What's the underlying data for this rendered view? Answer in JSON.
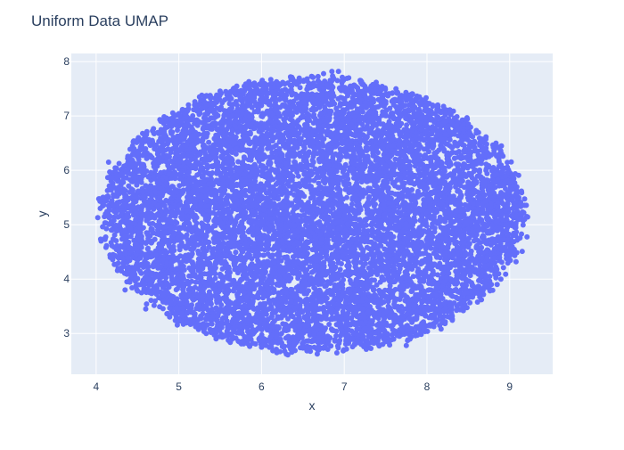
{
  "chart_data": {
    "type": "scatter",
    "title": "Uniform Data UMAP",
    "xlabel": "x",
    "ylabel": "y",
    "xlim": [
      3.7,
      9.52
    ],
    "ylim": [
      2.25,
      8.15
    ],
    "xticks": [
      4,
      5,
      6,
      7,
      8,
      9
    ],
    "yticks": [
      3,
      4,
      5,
      6,
      7,
      8
    ],
    "grid": true,
    "legend": "none",
    "marker_color": "#636efa",
    "plot_bg": "#e5ecf6",
    "cloud": {
      "shape": "ellipse",
      "center": [
        6.62,
        5.17
      ],
      "x_semi_axis": 2.55,
      "y_semi_axis": 2.52,
      "approx_points": 10000
    },
    "sample_points": [
      [
        4.05,
        5.3
      ],
      [
        4.1,
        5.45
      ],
      [
        4.06,
        4.7
      ],
      [
        4.15,
        6.15
      ],
      [
        4.35,
        3.8
      ],
      [
        4.6,
        3.45
      ],
      [
        5.0,
        3.25
      ],
      [
        5.45,
        2.9
      ],
      [
        6.0,
        2.75
      ],
      [
        6.3,
        2.62
      ],
      [
        6.55,
        2.68
      ],
      [
        7.0,
        2.7
      ],
      [
        7.5,
        2.85
      ],
      [
        7.75,
        2.78
      ],
      [
        8.1,
        3.2
      ],
      [
        8.45,
        3.6
      ],
      [
        8.7,
        3.85
      ],
      [
        9.05,
        4.45
      ],
      [
        9.18,
        5.1
      ],
      [
        9.05,
        5.85
      ],
      [
        8.9,
        6.45
      ],
      [
        8.5,
        6.85
      ],
      [
        8.0,
        7.2
      ],
      [
        7.4,
        7.55
      ],
      [
        7.2,
        7.65
      ],
      [
        6.85,
        7.82
      ],
      [
        6.93,
        7.82
      ],
      [
        6.75,
        7.78
      ],
      [
        6.35,
        7.72
      ],
      [
        6.2,
        7.6
      ],
      [
        5.7,
        7.55
      ],
      [
        5.25,
        7.35
      ],
      [
        4.85,
        6.95
      ],
      [
        4.55,
        6.55
      ],
      [
        4.3,
        5.95
      ]
    ]
  }
}
